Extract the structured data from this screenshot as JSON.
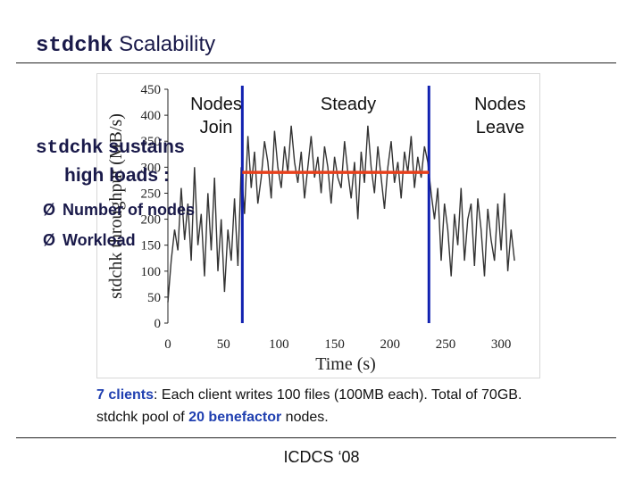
{
  "slide": {
    "title_code": "stdchk",
    "title_rest": " Scalability",
    "bullet_heading_code": "stdchk",
    "bullet_heading_line1": " sustains",
    "bullet_heading_line2": "high loads :",
    "bullet_marker": "Ø",
    "bullets": [
      "Number of nodes",
      "Workload"
    ],
    "caption_line1_hl": "7 clients",
    "caption_line1_rest": ": Each client writes 100 files (100MB each). Total of 70GB.",
    "caption_line2_a": "stdchk pool of ",
    "caption_line2_hl": "20 benefactor",
    "caption_line2_b": " nodes.",
    "footer": "ICDCS ‘08"
  },
  "annotations": {
    "join": [
      "Nodes",
      "Join"
    ],
    "steady": "Steady",
    "leave": [
      "Nodes",
      "Leave"
    ]
  },
  "colors": {
    "title": "#1a1a4a",
    "highlight": "#1f3fb0",
    "marker_lines": "#1020b0",
    "steady_line": "#e8401c",
    "series": "#333333"
  },
  "chart_data": {
    "type": "line",
    "xlabel": "Time (s)",
    "ylabel": "stdchk throughput (MB/s)",
    "xlim": [
      0,
      320
    ],
    "ylim": [
      0,
      450
    ],
    "xticks": [
      0,
      50,
      100,
      150,
      200,
      250,
      300
    ],
    "yticks": [
      0,
      50,
      100,
      150,
      200,
      250,
      300,
      350,
      400,
      450
    ],
    "vertical_markers": [
      67,
      235
    ],
    "steady_level": {
      "x": [
        67,
        235
      ],
      "y": 290
    },
    "series": [
      {
        "x": [
          0,
          3,
          6,
          9,
          12,
          15,
          18,
          21,
          24,
          27,
          30,
          33,
          36,
          39,
          42,
          45,
          48,
          51,
          54,
          57,
          60,
          63,
          66,
          69,
          72,
          75,
          78,
          81,
          84,
          87,
          90,
          93,
          96,
          99,
          102,
          105,
          108,
          111,
          114,
          117,
          120,
          123,
          126,
          129,
          132,
          135,
          138,
          141,
          144,
          147,
          150,
          153,
          156,
          159,
          162,
          165,
          168,
          171,
          174,
          177,
          180,
          183,
          186,
          189,
          192,
          195,
          198,
          201,
          204,
          207,
          210,
          213,
          216,
          219,
          222,
          225,
          228,
          231,
          234,
          237,
          240,
          243,
          246,
          249,
          252,
          255,
          258,
          261,
          264,
          267,
          270,
          273,
          276,
          279,
          282,
          285,
          288,
          291,
          294,
          297,
          300,
          303,
          306,
          309,
          312
        ],
        "y": [
          40,
          120,
          180,
          140,
          260,
          160,
          230,
          120,
          300,
          150,
          210,
          90,
          250,
          140,
          280,
          100,
          200,
          60,
          180,
          120,
          240,
          110,
          300,
          210,
          360,
          260,
          330,
          230,
          280,
          350,
          310,
          240,
          370,
          300,
          260,
          340,
          290,
          380,
          310,
          270,
          330,
          240,
          300,
          360,
          280,
          320,
          250,
          340,
          300,
          230,
          320,
          280,
          260,
          350,
          290,
          240,
          310,
          200,
          330,
          270,
          380,
          300,
          250,
          340,
          280,
          220,
          300,
          350,
          270,
          310,
          240,
          330,
          290,
          360,
          260,
          320,
          280,
          340,
          310,
          250,
          200,
          260,
          120,
          230,
          180,
          90,
          210,
          150,
          260,
          120,
          200,
          230,
          110,
          240,
          180,
          90,
          220,
          160,
          120,
          230,
          140,
          250,
          100,
          180,
          120
        ]
      }
    ]
  }
}
